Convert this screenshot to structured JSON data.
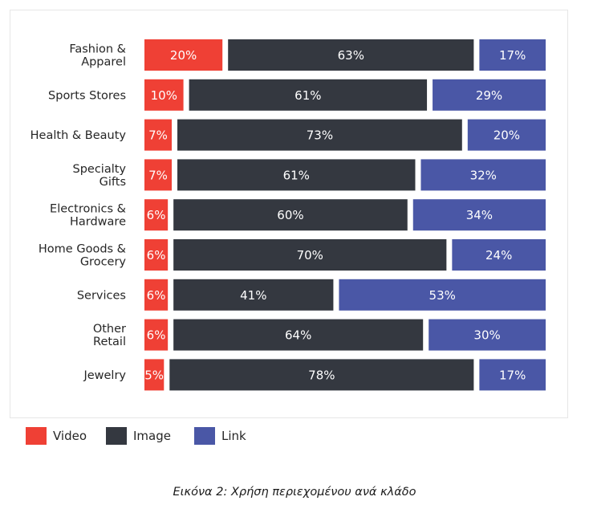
{
  "chart_data": {
    "type": "bar",
    "orientation": "horizontal",
    "stacked": true,
    "categories": [
      [
        "Fashion &",
        "Apparel"
      ],
      [
        "Sports Stores"
      ],
      [
        "Health & Beauty"
      ],
      [
        "Specialty",
        "Gifts"
      ],
      [
        "Electronics &",
        "Hardware"
      ],
      [
        "Home Goods &",
        "Grocery"
      ],
      [
        "Services"
      ],
      [
        "Other",
        "Retail"
      ],
      [
        "Jewelry"
      ]
    ],
    "series": [
      {
        "name": "Video",
        "color": "#ef4035",
        "values": [
          20,
          10,
          7,
          7,
          6,
          6,
          6,
          6,
          5
        ],
        "labels": [
          "20%",
          "10%",
          "7%",
          "7%",
          "6%",
          "6%",
          "6%",
          "6%",
          "5%"
        ]
      },
      {
        "name": "Image",
        "color": "#343840",
        "values": [
          63,
          61,
          73,
          61,
          60,
          70,
          41,
          64,
          78
        ],
        "labels": [
          "63%",
          "61%",
          "73%",
          "61%",
          "60%",
          "70%",
          "41%",
          "64%",
          "78%"
        ]
      },
      {
        "name": "Link",
        "color": "#4a57a6",
        "values": [
          17,
          29,
          20,
          32,
          34,
          24,
          53,
          30,
          17
        ],
        "labels": [
          "17%",
          "29%",
          "20%",
          "32%",
          "34%",
          "24%",
          "53%",
          "30%",
          "17%"
        ]
      }
    ],
    "legend": "bottom-left",
    "grid": false
  },
  "caption": "Εικόνα 2: Χρήση περιεχομένου ανά κλάδο"
}
